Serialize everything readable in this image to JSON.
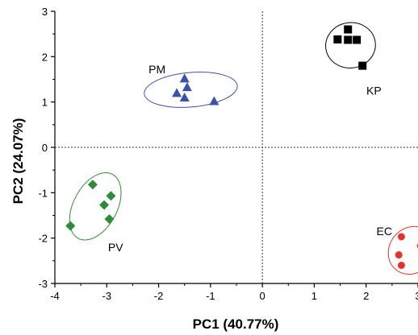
{
  "chart_data": {
    "type": "scatter",
    "xlabel": "PC1 (40.77%)",
    "ylabel": "PC2 (24.07%)",
    "xlim": [
      -4,
      3
    ],
    "ylim": [
      -3,
      3
    ],
    "x_ticks": [
      "-4",
      "-3",
      "-2",
      "-1",
      "0",
      "1",
      "2",
      "3"
    ],
    "y_ticks": [
      "3",
      "2",
      "1",
      "0",
      "-1",
      "-2",
      "-3"
    ],
    "reference_lines": {
      "x": 0,
      "y": 0,
      "style": "dotted"
    },
    "grid": false,
    "series": [
      {
        "name": "KP",
        "marker": "square",
        "color": "#000000",
        "points": [
          [
            1.45,
            2.38
          ],
          [
            1.65,
            2.6
          ],
          [
            1.65,
            2.37
          ],
          [
            1.82,
            2.37
          ],
          [
            1.93,
            1.8
          ]
        ]
      },
      {
        "name": "PM",
        "marker": "triangle",
        "color": "#3a52a8",
        "points": [
          [
            -1.5,
            1.52
          ],
          [
            -1.45,
            1.33
          ],
          [
            -1.65,
            1.2
          ],
          [
            -1.5,
            1.1
          ],
          [
            -0.93,
            1.02
          ]
        ]
      },
      {
        "name": "PV",
        "marker": "diamond",
        "color": "#2e8b3a",
        "points": [
          [
            -3.27,
            -0.82
          ],
          [
            -2.92,
            -1.07
          ],
          [
            -3.05,
            -1.27
          ],
          [
            -2.95,
            -1.58
          ],
          [
            -3.7,
            -1.73
          ]
        ]
      },
      {
        "name": "EC",
        "marker": "circle",
        "color": "#e8312a",
        "points": [
          [
            2.68,
            -1.97
          ],
          [
            3.2,
            -2.03
          ],
          [
            3.05,
            -2.17
          ],
          [
            2.63,
            -2.37
          ],
          [
            2.68,
            -2.6
          ]
        ]
      }
    ]
  }
}
